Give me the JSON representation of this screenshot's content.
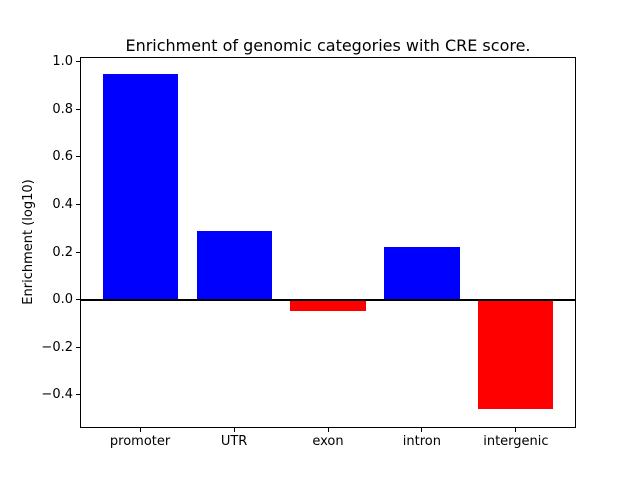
{
  "figure": {
    "background": "#ffffff",
    "axes_background": "#ffffff",
    "frame_color": "#000000",
    "text_color": "#000000"
  },
  "chart_data": {
    "type": "bar",
    "title": "Enrichment of genomic categories with CRE score.",
    "xlabel": "",
    "ylabel": "Enrichment (log10)",
    "categories": [
      "promoter",
      "UTR",
      "exon",
      "intron",
      "intergenic"
    ],
    "values": [
      0.95,
      0.29,
      -0.05,
      0.22,
      -0.46
    ],
    "bar_colors": [
      "#0000ff",
      "#0000ff",
      "#ff0000",
      "#0000ff",
      "#ff0000"
    ],
    "positive_color": "#0000ff",
    "negative_color": "#ff0000",
    "bar_width": 0.8,
    "ylim": [
      -0.54,
      1.02
    ],
    "xlim": [
      -0.64,
      4.64
    ],
    "yticks": [
      1.0,
      0.8,
      0.6,
      0.4,
      0.2,
      0.0,
      -0.2,
      -0.4
    ],
    "ytick_labels": [
      "1.0",
      "0.8",
      "0.6",
      "0.4",
      "0.2",
      "0.0",
      "−0.2",
      "−0.4"
    ],
    "grid": false,
    "zero_line": true,
    "legend": null
  }
}
